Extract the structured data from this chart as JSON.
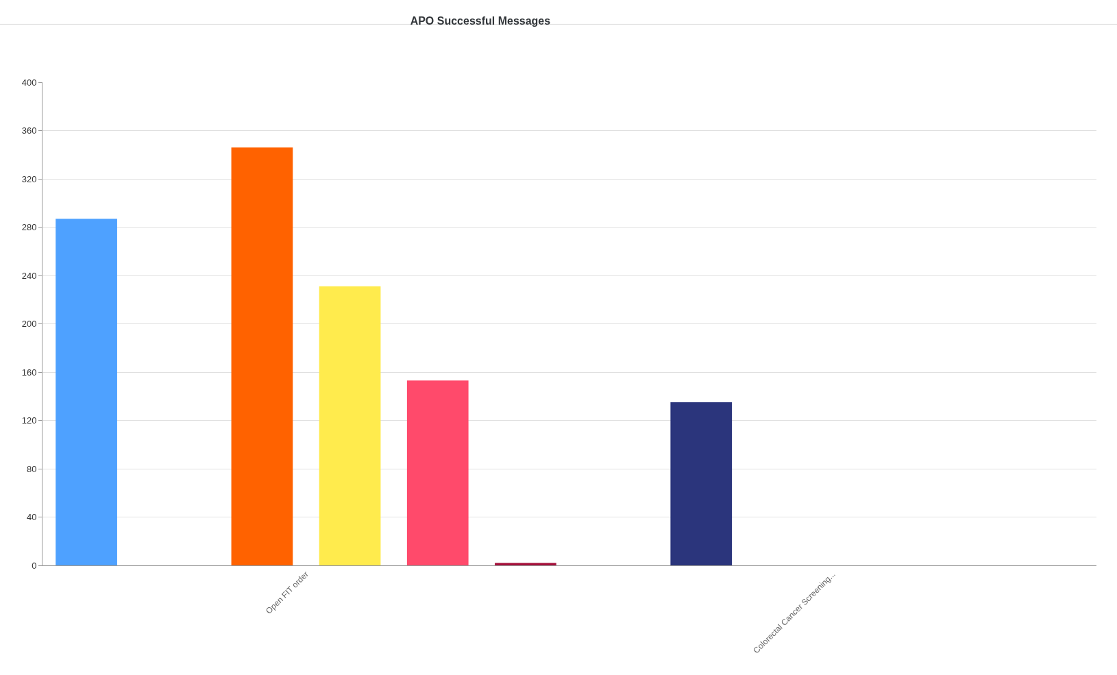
{
  "chart_data": {
    "type": "bar",
    "title": "APO Successful Messages",
    "categories": [
      "Open FIT order",
      "Colorectal Cancer Screening..."
    ],
    "series": [
      {
        "color": "#4ea1ff",
        "values": [
          287,
          null
        ]
      },
      {
        "color": "#2b357c",
        "values": [
          null,
          135
        ]
      },
      {
        "color": "#ff6200",
        "values": [
          346,
          null
        ]
      },
      {
        "color": "#ffeb4d",
        "values": [
          231,
          null
        ]
      },
      {
        "color": "#ff4a6b",
        "values": [
          153,
          null
        ]
      },
      {
        "color": "#a5113b",
        "values": [
          2,
          null
        ]
      }
    ],
    "ylim": [
      0,
      400
    ],
    "yticks": [
      0,
      40,
      80,
      120,
      160,
      200,
      240,
      280,
      320,
      360,
      400
    ],
    "grid": "y"
  }
}
